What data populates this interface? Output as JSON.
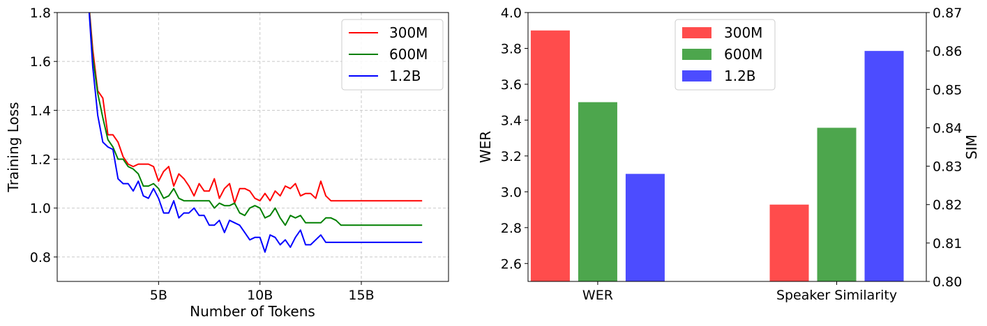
{
  "chart_data": [
    {
      "type": "line",
      "xlabel": "Number of Tokens",
      "ylabel": "Training Loss",
      "xlim": [
        0,
        19.3
      ],
      "ylim": [
        0.7,
        1.8
      ],
      "grid": true,
      "legend_position": "top-right",
      "xticks": [
        {
          "value": 5,
          "label": "5B"
        },
        {
          "value": 10,
          "label": "10B"
        },
        {
          "value": 15,
          "label": "15B"
        }
      ],
      "yticks": [
        0.8,
        1.0,
        1.2,
        1.4,
        1.6,
        1.8
      ],
      "ytick_labels": [
        "0.8",
        "1.0",
        "1.2",
        "1.4",
        "1.6",
        "1.8"
      ],
      "x": [
        1.5,
        1.75,
        2.0,
        2.25,
        2.5,
        2.75,
        3.0,
        3.25,
        3.5,
        3.75,
        4.0,
        4.25,
        4.5,
        4.75,
        5.0,
        5.25,
        5.5,
        5.75,
        6.0,
        6.25,
        6.5,
        6.75,
        7.0,
        7.25,
        7.5,
        7.75,
        8.0,
        8.25,
        8.5,
        8.75,
        9.0,
        9.25,
        9.5,
        9.75,
        10.0,
        10.25,
        10.5,
        10.75,
        11.0,
        11.25,
        11.5,
        11.75,
        12.0,
        12.25,
        12.5,
        12.75,
        13.0,
        13.25,
        13.5,
        13.75,
        14.0,
        14.25,
        14.5,
        14.75,
        15.0,
        15.25,
        15.5,
        15.75,
        16.0,
        16.25,
        16.5,
        16.75,
        17.0,
        17.25,
        17.5,
        17.75,
        18.0
      ],
      "series": [
        {
          "name": "300M",
          "color": "#ff0000",
          "values": [
            1.9,
            1.65,
            1.48,
            1.45,
            1.3,
            1.3,
            1.27,
            1.21,
            1.18,
            1.17,
            1.18,
            1.18,
            1.18,
            1.17,
            1.11,
            1.15,
            1.17,
            1.09,
            1.14,
            1.12,
            1.09,
            1.05,
            1.1,
            1.07,
            1.07,
            1.12,
            1.04,
            1.08,
            1.1,
            1.02,
            1.08,
            1.08,
            1.07,
            1.04,
            1.03,
            1.06,
            1.03,
            1.07,
            1.05,
            1.09,
            1.08,
            1.1,
            1.05,
            1.06,
            1.06,
            1.04,
            1.11,
            1.05,
            1.03,
            1.03,
            1.03,
            1.03,
            1.03,
            1.03,
            1.03,
            1.03,
            1.03,
            1.03,
            1.03,
            1.03,
            1.03,
            1.03,
            1.03,
            1.03,
            1.03,
            1.03,
            1.03
          ]
        },
        {
          "name": "600M",
          "color": "#008000",
          "values": [
            1.9,
            1.62,
            1.47,
            1.37,
            1.28,
            1.25,
            1.2,
            1.2,
            1.17,
            1.16,
            1.14,
            1.09,
            1.09,
            1.1,
            1.08,
            1.04,
            1.05,
            1.08,
            1.04,
            1.03,
            1.03,
            1.03,
            1.03,
            1.03,
            1.03,
            1.0,
            1.02,
            1.01,
            1.01,
            1.02,
            0.98,
            0.97,
            1.0,
            1.01,
            1.0,
            0.96,
            0.97,
            1.0,
            0.96,
            0.93,
            0.97,
            0.96,
            0.97,
            0.94,
            0.94,
            0.94,
            0.94,
            0.96,
            0.96,
            0.95,
            0.93,
            0.93,
            0.93,
            0.93,
            0.93,
            0.93,
            0.93,
            0.93,
            0.93,
            0.93,
            0.93,
            0.93,
            0.93,
            0.93,
            0.93,
            0.93,
            0.93
          ]
        },
        {
          "name": "1.2B",
          "color": "#0000ff",
          "values": [
            1.9,
            1.58,
            1.38,
            1.27,
            1.25,
            1.24,
            1.12,
            1.1,
            1.1,
            1.07,
            1.11,
            1.05,
            1.04,
            1.08,
            1.04,
            0.98,
            0.98,
            1.03,
            0.96,
            0.98,
            0.98,
            1.0,
            0.97,
            0.97,
            0.93,
            0.93,
            0.95,
            0.9,
            0.95,
            0.94,
            0.93,
            0.9,
            0.87,
            0.88,
            0.88,
            0.82,
            0.89,
            0.88,
            0.85,
            0.87,
            0.84,
            0.88,
            0.91,
            0.85,
            0.85,
            0.87,
            0.89,
            0.86,
            0.86,
            0.86,
            0.86,
            0.86,
            0.86,
            0.86,
            0.86,
            0.86,
            0.86,
            0.86,
            0.86,
            0.86,
            0.86,
            0.86,
            0.86,
            0.86,
            0.86,
            0.86,
            0.86
          ]
        }
      ]
    },
    {
      "type": "bar",
      "categories": [
        "WER",
        "Speaker Similarity"
      ],
      "ylabel": "WER",
      "ylim": [
        2.5,
        4.0
      ],
      "yticks": [
        2.6,
        2.8,
        3.0,
        3.2,
        3.4,
        3.6,
        3.8,
        4.0
      ],
      "ytick_labels": [
        "2.6",
        "2.8",
        "3.0",
        "3.2",
        "3.4",
        "3.6",
        "3.8",
        "4.0"
      ],
      "y2label": "SIM",
      "y2lim": [
        0.8,
        0.87
      ],
      "y2ticks": [
        0.8,
        0.81,
        0.82,
        0.83,
        0.84,
        0.85,
        0.86,
        0.87
      ],
      "y2tick_labels": [
        "0.80",
        "0.81",
        "0.82",
        "0.83",
        "0.84",
        "0.85",
        "0.86",
        "0.87"
      ],
      "legend_position": "top-center",
      "grid": false,
      "series": [
        {
          "name": "300M",
          "color": "#ff4c4c",
          "wer": 3.9,
          "sim": 0.82
        },
        {
          "name": "600M",
          "color": "#4da64d",
          "wer": 3.5,
          "sim": 0.84
        },
        {
          "name": "1.2B",
          "color": "#4c4cff",
          "wer": 3.1,
          "sim": 0.86
        }
      ]
    }
  ]
}
